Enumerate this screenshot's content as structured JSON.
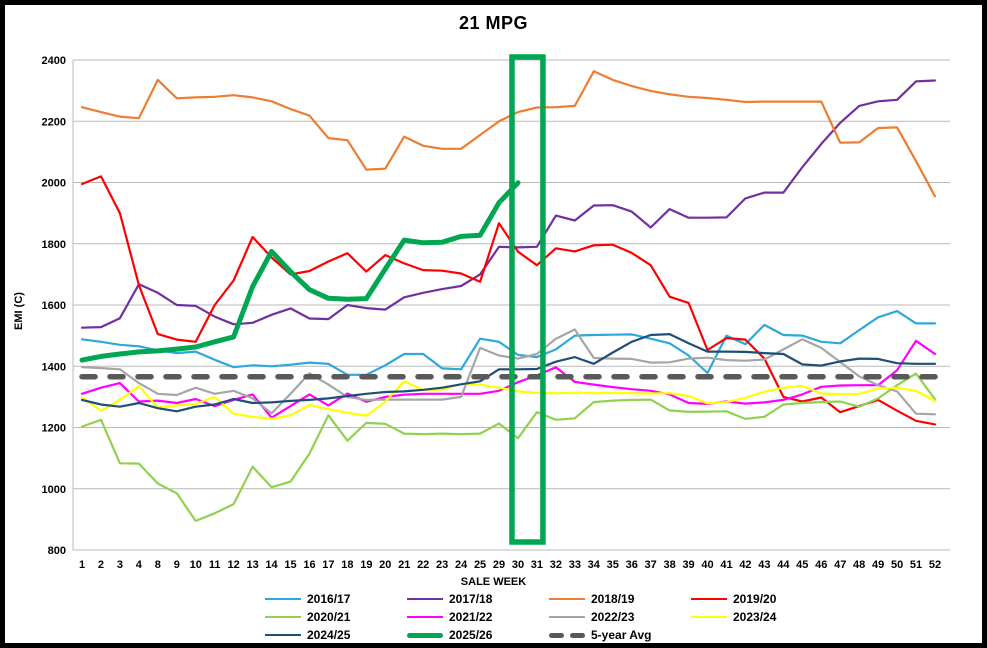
{
  "title": "21 MPG",
  "x_axis": {
    "title": "SALE WEEK"
  },
  "y_axis": {
    "title": "EMI (C)",
    "min": 800,
    "max": 2400,
    "step": 200,
    "tick_labels": [
      "800",
      "1000",
      "1200",
      "1400",
      "1600",
      "1800",
      "2000",
      "2200",
      "2400"
    ]
  },
  "chart_data": {
    "type": "line",
    "categories": [
      "1",
      "2",
      "3",
      "4",
      "8",
      "9",
      "10",
      "11",
      "12",
      "13",
      "14",
      "15",
      "16",
      "17",
      "18",
      "19",
      "20",
      "21",
      "22",
      "23",
      "24",
      "25",
      "29",
      "30",
      "31",
      "32",
      "33",
      "34",
      "35",
      "36",
      "37",
      "38",
      "39",
      "40",
      "41",
      "42",
      "43",
      "44",
      "45",
      "46",
      "47",
      "48",
      "49",
      "50",
      "51",
      "52"
    ],
    "grid": true,
    "ylim": [
      800,
      2400
    ],
    "highlight_box": {
      "start_label": "30",
      "end_label": "31",
      "color": "#00A651"
    },
    "series": [
      {
        "name": "2016/17",
        "color": "#2EA8DC",
        "width": 2.2,
        "values": [
          1488,
          1480,
          1470,
          1465,
          1452,
          1443,
          1448,
          1421,
          1397,
          1403,
          1400,
          1405,
          1412,
          1408,
          1372,
          1372,
          1403,
          1440,
          1440,
          1393,
          1390,
          1490,
          1480,
          1437,
          1430,
          1455,
          1500,
          1502,
          1503,
          1504,
          1490,
          1475,
          1435,
          1378,
          1500,
          1472,
          1535,
          1502,
          1500,
          1480,
          1475,
          1518,
          1560,
          1580,
          1540,
          1540
        ]
      },
      {
        "name": "2017/18",
        "color": "#7030A0",
        "width": 2.2,
        "values": [
          1526,
          1528,
          1557,
          1668,
          1640,
          1600,
          1597,
          1562,
          1537,
          1542,
          1568,
          1589,
          1556,
          1554,
          1600,
          1590,
          1585,
          1625,
          1640,
          1652,
          1662,
          1700,
          1790,
          1788,
          1790,
          1892,
          1876,
          1925,
          1926,
          1905,
          1853,
          1913,
          1885,
          1885,
          1886,
          1948,
          1967,
          1967,
          2050,
          2126,
          2195,
          2250,
          2265,
          2270,
          2330,
          2333
        ]
      },
      {
        "name": "2018/19",
        "color": "#ED7D31",
        "width": 2.2,
        "values": [
          2246,
          2230,
          2215,
          2210,
          2335,
          2275,
          2278,
          2280,
          2285,
          2278,
          2265,
          2240,
          2218,
          2145,
          2138,
          2042,
          2045,
          2150,
          2120,
          2110,
          2110,
          2155,
          2200,
          2230,
          2245,
          2246,
          2250,
          2363,
          2335,
          2315,
          2299,
          2288,
          2280,
          2276,
          2270,
          2263,
          2264,
          2264,
          2264,
          2264,
          2130,
          2131,
          2178,
          2180,
          2070,
          1955
        ]
      },
      {
        "name": "2019/20",
        "color": "#FF0000",
        "width": 2.2,
        "values": [
          1995,
          2020,
          1900,
          1665,
          1505,
          1487,
          1480,
          1600,
          1680,
          1822,
          1755,
          1700,
          1711,
          1742,
          1769,
          1709,
          1763,
          1736,
          1714,
          1712,
          1703,
          1676,
          1867,
          1774,
          1730,
          1785,
          1775,
          1795,
          1797,
          1770,
          1730,
          1627,
          1607,
          1453,
          1492,
          1487,
          1425,
          1300,
          1285,
          1298,
          1250,
          1270,
          1290,
          1255,
          1222,
          1210
        ]
      },
      {
        "name": "2020/21",
        "color": "#92D050",
        "width": 2.2,
        "values": [
          1203,
          1225,
          1083,
          1082,
          1017,
          985,
          895,
          920,
          950,
          1072,
          1005,
          1023,
          1115,
          1240,
          1157,
          1215,
          1212,
          1180,
          1178,
          1180,
          1178,
          1180,
          1213,
          1165,
          1250,
          1225,
          1230,
          1283,
          1288,
          1290,
          1291,
          1256,
          1251,
          1252,
          1253,
          1228,
          1235,
          1275,
          1280,
          1283,
          1285,
          1268,
          1295,
          1338,
          1376,
          1292
        ]
      },
      {
        "name": "2021/22",
        "color": "#FF00FF",
        "width": 2.2,
        "values": [
          1310,
          1330,
          1345,
          1285,
          1288,
          1280,
          1293,
          1270,
          1290,
          1308,
          1232,
          1270,
          1308,
          1272,
          1311,
          1284,
          1300,
          1307,
          1310,
          1310,
          1310,
          1310,
          1320,
          1348,
          1370,
          1397,
          1349,
          1340,
          1332,
          1325,
          1320,
          1308,
          1280,
          1277,
          1285,
          1278,
          1282,
          1290,
          1308,
          1333,
          1337,
          1338,
          1338,
          1387,
          1483,
          1440
        ]
      },
      {
        "name": "2022/23",
        "color": "#A6A6A6",
        "width": 2.2,
        "values": [
          1397,
          1394,
          1390,
          1345,
          1310,
          1306,
          1330,
          1310,
          1320,
          1295,
          1246,
          1310,
          1377,
          1340,
          1300,
          1290,
          1291,
          1291,
          1291,
          1291,
          1300,
          1460,
          1435,
          1425,
          1440,
          1490,
          1520,
          1427,
          1425,
          1424,
          1412,
          1413,
          1425,
          1428,
          1420,
          1418,
          1422,
          1455,
          1488,
          1460,
          1414,
          1367,
          1338,
          1318,
          1245,
          1243
        ]
      },
      {
        "name": "2023/24",
        "color": "#FFFF00",
        "width": 2.2,
        "values": [
          1298,
          1255,
          1290,
          1335,
          1265,
          1272,
          1277,
          1300,
          1245,
          1235,
          1228,
          1240,
          1273,
          1260,
          1248,
          1239,
          1284,
          1351,
          1322,
          1324,
          1342,
          1340,
          1330,
          1318,
          1313,
          1312,
          1314,
          1312,
          1313,
          1312,
          1311,
          1312,
          1303,
          1279,
          1283,
          1297,
          1317,
          1330,
          1336,
          1311,
          1309,
          1310,
          1327,
          1330,
          1320,
          1287
        ]
      },
      {
        "name": "2024/25",
        "color": "#1F4E79",
        "width": 2.2,
        "values": [
          1290,
          1275,
          1268,
          1280,
          1263,
          1253,
          1268,
          1275,
          1293,
          1280,
          1282,
          1287,
          1290,
          1295,
          1303,
          1310,
          1316,
          1318,
          1323,
          1330,
          1341,
          1351,
          1390,
          1390,
          1391,
          1415,
          1430,
          1408,
          1445,
          1480,
          1502,
          1505,
          1475,
          1448,
          1448,
          1447,
          1443,
          1440,
          1406,
          1402,
          1416,
          1425,
          1424,
          1410,
          1408,
          1408
        ]
      },
      {
        "name": "5-year Avg",
        "color": "#595959",
        "width": 5.5,
        "dash": [
          13,
          15
        ],
        "constant_value": 1366
      },
      {
        "name": "2025/26",
        "color": "#00A651",
        "width": 5,
        "values": [
          1420,
          1432,
          1440,
          1447,
          1450,
          1456,
          1463,
          1480,
          1496,
          1660,
          1775,
          1709,
          1650,
          1622,
          1619,
          1621,
          1718,
          1812,
          1803,
          1805,
          1824,
          1828,
          1934,
          1999,
          null,
          null,
          null,
          null,
          null,
          null,
          null,
          null,
          null,
          null,
          null,
          null,
          null,
          null,
          null,
          null,
          null,
          null,
          null,
          null,
          null,
          null
        ]
      }
    ]
  },
  "legend": {
    "rows": [
      [
        {
          "label": "2016/17",
          "color": "#2EA8DC",
          "swatch": "line"
        },
        {
          "label": "2017/18",
          "color": "#7030A0",
          "swatch": "line"
        },
        {
          "label": "2018/19",
          "color": "#ED7D31",
          "swatch": "line"
        },
        {
          "label": "2019/20",
          "color": "#FF0000",
          "swatch": "line"
        }
      ],
      [
        {
          "label": "2020/21",
          "color": "#92D050",
          "swatch": "line"
        },
        {
          "label": "2021/22",
          "color": "#FF00FF",
          "swatch": "line"
        },
        {
          "label": "2022/23",
          "color": "#A6A6A6",
          "swatch": "line"
        },
        {
          "label": "2023/24",
          "color": "#FFFF00",
          "swatch": "line"
        }
      ],
      [
        {
          "label": "2024/25",
          "color": "#1F4E79",
          "swatch": "line"
        },
        {
          "label": "2025/26",
          "color": "#00A651",
          "swatch": "thick-line"
        },
        {
          "label": "5-year Avg",
          "color": "#595959",
          "swatch": "dashes"
        }
      ]
    ]
  }
}
